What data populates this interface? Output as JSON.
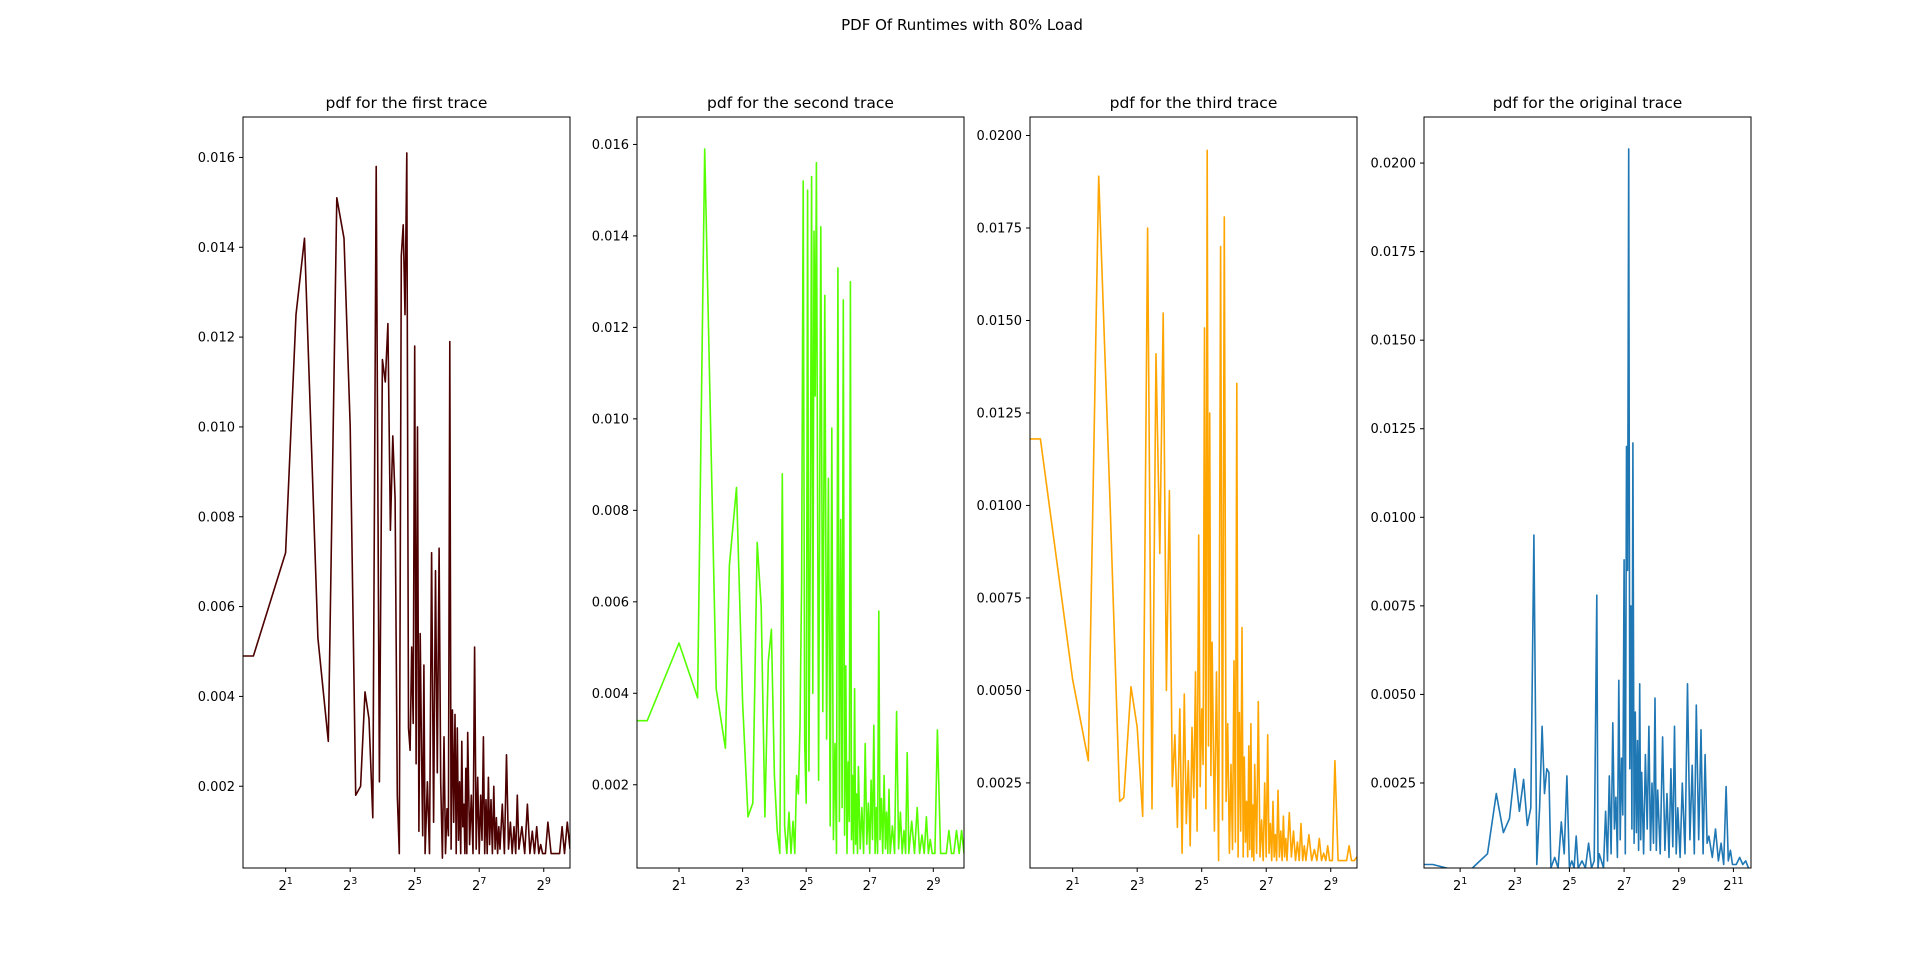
{
  "figure": {
    "suptitle": "PDF Of Runtimes with 80% Load"
  },
  "chart_data": [
    {
      "type": "line",
      "title": "pdf for the first trace",
      "color": "#4d0000",
      "x_scale": "log2",
      "xlim": [
        0.8,
        900
      ],
      "ylim": [
        0.00018,
        0.0169
      ],
      "xticks": [
        2,
        8,
        32,
        128,
        512
      ],
      "xtick_labels": [
        {
          "base": "2",
          "exp": "1"
        },
        {
          "base": "2",
          "exp": "3"
        },
        {
          "base": "2",
          "exp": "5"
        },
        {
          "base": "2",
          "exp": "7"
        },
        {
          "base": "2",
          "exp": "9"
        }
      ],
      "yticks": [
        0.002,
        0.004,
        0.006,
        0.008,
        0.01,
        0.012,
        0.014,
        0.016
      ],
      "ytick_labels": [
        "0.002",
        "0.004",
        "0.006",
        "0.008",
        "0.010",
        "0.012",
        "0.014",
        "0.016"
      ],
      "x": [
        0.8,
        1.0,
        2.0,
        2.5,
        3.0,
        4.0,
        5.0,
        6.0,
        7.0,
        8.0,
        9.0,
        10,
        11,
        12,
        13,
        14,
        15,
        16,
        17,
        18,
        19,
        20,
        21,
        22,
        23,
        24,
        25,
        26,
        27,
        28,
        29,
        30,
        31,
        32,
        33,
        34,
        35,
        36,
        37,
        38,
        39,
        40,
        42,
        44,
        46,
        48,
        50,
        52,
        54,
        56,
        58,
        60,
        62,
        64,
        66,
        68,
        70,
        72,
        74,
        76,
        78,
        80,
        82,
        84,
        86,
        88,
        90,
        92,
        94,
        96,
        98,
        100,
        104,
        108,
        112,
        116,
        120,
        124,
        128,
        132,
        136,
        140,
        144,
        148,
        152,
        156,
        160,
        165,
        170,
        175,
        180,
        185,
        190,
        195,
        200,
        210,
        220,
        230,
        240,
        250,
        260,
        270,
        280,
        290,
        300,
        320,
        340,
        360,
        380,
        400,
        420,
        440,
        460,
        480,
        500,
        530,
        560,
        600,
        640,
        680,
        720,
        760,
        800,
        850,
        900
      ],
      "y": [
        0.0049,
        0.0049,
        0.0072,
        0.0125,
        0.0142,
        0.0053,
        0.003,
        0.0151,
        0.0142,
        0.01,
        0.0018,
        0.002,
        0.0041,
        0.0035,
        0.0013,
        0.0158,
        0.0021,
        0.0115,
        0.011,
        0.0123,
        0.0077,
        0.0098,
        0.0084,
        0.0018,
        0.0005,
        0.0138,
        0.0145,
        0.0125,
        0.0161,
        0.0033,
        0.0028,
        0.0051,
        0.0034,
        0.0118,
        0.0025,
        0.01,
        0.001,
        0.0054,
        0.0028,
        0.0009,
        0.0047,
        0.0005,
        0.0021,
        0.0005,
        0.0072,
        0.0012,
        0.0068,
        0.0023,
        0.0073,
        0.0021,
        0.0004,
        0.0031,
        0.0005,
        0.0015,
        0.0009,
        0.0119,
        0.0006,
        0.0037,
        0.0012,
        0.0036,
        0.0005,
        0.0033,
        0.0008,
        0.0021,
        0.0005,
        0.003,
        0.0011,
        0.0016,
        0.0005,
        0.0024,
        0.0005,
        0.0032,
        0.0007,
        0.0018,
        0.0005,
        0.0051,
        0.0006,
        0.0022,
        0.0005,
        0.0018,
        0.0008,
        0.0031,
        0.0005,
        0.0017,
        0.0005,
        0.0022,
        0.0007,
        0.0017,
        0.0005,
        0.002,
        0.0006,
        0.0013,
        0.0005,
        0.0011,
        0.0006,
        0.0016,
        0.0005,
        0.0027,
        0.0006,
        0.0012,
        0.0005,
        0.0011,
        0.0005,
        0.0018,
        0.0006,
        0.0011,
        0.0005,
        0.0016,
        0.0005,
        0.001,
        0.0005,
        0.0011,
        0.0005,
        0.0007,
        0.0005,
        0.0005,
        0.0012,
        0.0005,
        0.0005,
        0.0005,
        0.0005,
        0.0011,
        0.0005,
        0.0012,
        0.0006
      ]
    },
    {
      "type": "line",
      "title": "pdf for the second trace",
      "color": "#55ff00",
      "x_scale": "log2",
      "xlim": [
        0.8,
        1000
      ],
      "ylim": [
        0.00018,
        0.0166
      ],
      "xticks": [
        2,
        8,
        32,
        128,
        512
      ],
      "xtick_labels": [
        {
          "base": "2",
          "exp": "1"
        },
        {
          "base": "2",
          "exp": "3"
        },
        {
          "base": "2",
          "exp": "5"
        },
        {
          "base": "2",
          "exp": "7"
        },
        {
          "base": "2",
          "exp": "9"
        }
      ],
      "yticks": [
        0.002,
        0.004,
        0.006,
        0.008,
        0.01,
        0.012,
        0.014,
        0.016
      ],
      "ytick_labels": [
        "0.002",
        "0.004",
        "0.006",
        "0.008",
        "0.010",
        "0.012",
        "0.014",
        "0.016"
      ],
      "x": [
        0.8,
        1.0,
        2.0,
        3.0,
        3.5,
        4.5,
        5.5,
        6.0,
        7.0,
        8.0,
        9.0,
        10,
        11,
        12,
        13,
        14,
        15,
        16,
        17,
        18,
        19,
        20,
        21,
        22,
        23,
        24,
        25,
        26,
        27,
        28,
        29,
        30,
        31,
        32,
        33,
        34,
        35,
        36,
        37,
        38,
        39,
        40,
        42,
        44,
        46,
        48,
        50,
        52,
        54,
        56,
        58,
        60,
        62,
        64,
        66,
        68,
        70,
        72,
        74,
        76,
        78,
        80,
        82,
        84,
        86,
        88,
        90,
        92,
        94,
        96,
        98,
        100,
        104,
        108,
        112,
        116,
        120,
        124,
        128,
        132,
        136,
        140,
        144,
        148,
        152,
        156,
        160,
        165,
        170,
        175,
        180,
        185,
        190,
        195,
        200,
        210,
        220,
        230,
        240,
        250,
        260,
        270,
        280,
        290,
        300,
        320,
        340,
        360,
        380,
        400,
        420,
        440,
        460,
        480,
        500,
        530,
        560,
        600,
        640,
        680,
        720,
        760,
        800,
        850,
        900,
        950,
        1000
      ],
      "y": [
        0.0034,
        0.0034,
        0.0051,
        0.0039,
        0.0159,
        0.0041,
        0.0028,
        0.0068,
        0.0085,
        0.0038,
        0.0013,
        0.0016,
        0.0073,
        0.0059,
        0.0013,
        0.0047,
        0.0054,
        0.0022,
        0.001,
        0.0005,
        0.0088,
        0.0011,
        0.0005,
        0.0014,
        0.0005,
        0.0012,
        0.0005,
        0.0022,
        0.0018,
        0.0033,
        0.0064,
        0.0152,
        0.0029,
        0.0016,
        0.015,
        0.0023,
        0.0075,
        0.0153,
        0.004,
        0.0141,
        0.0105,
        0.0156,
        0.0021,
        0.0142,
        0.0036,
        0.0127,
        0.003,
        0.0087,
        0.0011,
        0.0098,
        0.0008,
        0.0029,
        0.0005,
        0.0133,
        0.0012,
        0.0078,
        0.0015,
        0.0126,
        0.0009,
        0.0046,
        0.0005,
        0.0025,
        0.0012,
        0.013,
        0.0008,
        0.0022,
        0.0005,
        0.0041,
        0.0007,
        0.0018,
        0.0005,
        0.0024,
        0.0006,
        0.0015,
        0.0005,
        0.0029,
        0.0007,
        0.0016,
        0.0005,
        0.0021,
        0.0008,
        0.0033,
        0.0005,
        0.0015,
        0.0005,
        0.0058,
        0.0008,
        0.0017,
        0.0005,
        0.0022,
        0.0006,
        0.0014,
        0.0005,
        0.0019,
        0.0005,
        0.0011,
        0.0005,
        0.0036,
        0.0006,
        0.0014,
        0.0005,
        0.001,
        0.0005,
        0.0027,
        0.0005,
        0.0012,
        0.0005,
        0.0015,
        0.0005,
        0.0009,
        0.0005,
        0.0013,
        0.0005,
        0.0008,
        0.0005,
        0.0005,
        0.0032,
        0.0005,
        0.0005,
        0.0005,
        0.001,
        0.0005,
        0.0005,
        0.001,
        0.0005,
        0.001,
        0.0005
      ]
    },
    {
      "type": "line",
      "title": "pdf for the third trace",
      "color": "#ffa500",
      "x_scale": "log2",
      "xlim": [
        0.8,
        900
      ],
      "ylim": [
        0.0002,
        0.0205
      ],
      "xticks": [
        2,
        8,
        32,
        128,
        512
      ],
      "xtick_labels": [
        {
          "base": "2",
          "exp": "1"
        },
        {
          "base": "2",
          "exp": "3"
        },
        {
          "base": "2",
          "exp": "5"
        },
        {
          "base": "2",
          "exp": "7"
        },
        {
          "base": "2",
          "exp": "9"
        }
      ],
      "yticks": [
        0.0025,
        0.005,
        0.0075,
        0.01,
        0.0125,
        0.015,
        0.0175,
        0.02
      ],
      "ytick_labels": [
        "0.0025",
        "0.0050",
        "0.0075",
        "0.0100",
        "0.0125",
        "0.0150",
        "0.0175",
        "0.0200"
      ],
      "x": [
        0.8,
        1.0,
        2.0,
        2.8,
        3.5,
        4.5,
        5.5,
        6.0,
        7.0,
        8.0,
        9.0,
        10,
        11,
        12,
        13,
        14,
        15,
        16,
        17,
        18,
        19,
        20,
        21,
        22,
        23,
        24,
        25,
        26,
        27,
        28,
        29,
        30,
        31,
        32,
        33,
        34,
        35,
        36,
        37,
        38,
        39,
        40,
        42,
        44,
        46,
        48,
        50,
        52,
        54,
        56,
        58,
        60,
        62,
        64,
        66,
        68,
        70,
        72,
        74,
        76,
        78,
        80,
        82,
        84,
        86,
        88,
        90,
        92,
        94,
        96,
        98,
        100,
        104,
        108,
        112,
        116,
        120,
        124,
        128,
        132,
        136,
        140,
        144,
        148,
        152,
        156,
        160,
        165,
        170,
        175,
        180,
        185,
        190,
        195,
        200,
        210,
        220,
        230,
        240,
        250,
        260,
        270,
        280,
        290,
        300,
        320,
        340,
        360,
        380,
        400,
        420,
        440,
        460,
        480,
        500,
        530,
        560,
        600,
        640,
        680,
        720,
        760,
        800,
        850,
        900
      ],
      "y": [
        0.0118,
        0.0118,
        0.0053,
        0.0031,
        0.0189,
        0.0098,
        0.002,
        0.0021,
        0.0051,
        0.004,
        0.0016,
        0.0175,
        0.0018,
        0.0141,
        0.0087,
        0.0152,
        0.005,
        0.0104,
        0.0024,
        0.0038,
        0.0013,
        0.0045,
        0.0006,
        0.0049,
        0.0014,
        0.0031,
        0.0008,
        0.004,
        0.0021,
        0.0055,
        0.0012,
        0.0092,
        0.0024,
        0.0045,
        0.003,
        0.0148,
        0.0018,
        0.0196,
        0.0035,
        0.0125,
        0.0027,
        0.0063,
        0.0012,
        0.0055,
        0.0004,
        0.017,
        0.0015,
        0.0178,
        0.002,
        0.0041,
        0.0006,
        0.003,
        0.0007,
        0.0058,
        0.0009,
        0.0133,
        0.0005,
        0.0044,
        0.0012,
        0.0067,
        0.0005,
        0.0032,
        0.0009,
        0.002,
        0.0005,
        0.0035,
        0.0007,
        0.0041,
        0.0005,
        0.0019,
        0.0004,
        0.003,
        0.0006,
        0.0047,
        0.0005,
        0.0015,
        0.0004,
        0.0025,
        0.0005,
        0.0038,
        0.0006,
        0.0014,
        0.0004,
        0.002,
        0.0005,
        0.0011,
        0.0004,
        0.0023,
        0.0005,
        0.0012,
        0.0004,
        0.0016,
        0.0005,
        0.001,
        0.0004,
        0.0017,
        0.0005,
        0.0012,
        0.0004,
        0.0009,
        0.0004,
        0.0014,
        0.0004,
        0.0008,
        0.0004,
        0.0011,
        0.0004,
        0.0007,
        0.0004,
        0.001,
        0.0004,
        0.0006,
        0.0004,
        0.0008,
        0.0004,
        0.0004,
        0.0031,
        0.0004,
        0.0004,
        0.0004,
        0.0004,
        0.0008,
        0.0004,
        0.0004,
        0.0005
      ]
    },
    {
      "type": "line",
      "title": "pdf for the original trace",
      "color": "#1f77b4",
      "x_scale": "log2",
      "xlim": [
        0.8,
        3200
      ],
      "ylim": [
        0.0001,
        0.0213
      ],
      "xticks": [
        2,
        8,
        32,
        128,
        512,
        2048
      ],
      "xtick_labels": [
        {
          "base": "2",
          "exp": "1"
        },
        {
          "base": "2",
          "exp": "3"
        },
        {
          "base": "2",
          "exp": "5"
        },
        {
          "base": "2",
          "exp": "7"
        },
        {
          "base": "2",
          "exp": "9"
        },
        {
          "base": "2",
          "exp": "11"
        }
      ],
      "yticks": [
        0.0025,
        0.005,
        0.0075,
        0.01,
        0.0125,
        0.015,
        0.0175,
        0.02
      ],
      "ytick_labels": [
        "0.0025",
        "0.0050",
        "0.0075",
        "0.0100",
        "0.0125",
        "0.0150",
        "0.0175",
        "0.0200"
      ],
      "x": [
        0.8,
        1.0,
        2.0,
        2.5,
        3.0,
        4.0,
        5.0,
        6.0,
        7.0,
        8.0,
        9.0,
        10,
        11,
        12,
        13,
        14,
        15,
        16,
        17,
        18,
        19,
        20,
        22,
        24,
        26,
        28,
        30,
        32,
        34,
        36,
        38,
        40,
        44,
        48,
        52,
        56,
        60,
        64,
        66,
        68,
        72,
        76,
        80,
        84,
        88,
        92,
        96,
        100,
        104,
        108,
        112,
        116,
        120,
        124,
        128,
        132,
        136,
        140,
        144,
        148,
        152,
        156,
        160,
        165,
        170,
        175,
        180,
        185,
        190,
        195,
        200,
        210,
        220,
        230,
        240,
        250,
        260,
        270,
        280,
        290,
        300,
        320,
        340,
        360,
        380,
        400,
        420,
        440,
        460,
        480,
        500,
        530,
        560,
        600,
        640,
        680,
        720,
        760,
        800,
        850,
        900,
        950,
        1000,
        1050,
        1100,
        1200,
        1300,
        1400,
        1500,
        1600,
        1700,
        1800,
        1900,
        2000,
        2200,
        2400,
        2600,
        2800,
        3000
      ],
      "y": [
        0.0002,
        0.0002,
        0.0,
        0.0,
        0.0002,
        0.0005,
        0.0022,
        0.0011,
        0.0015,
        0.0029,
        0.0017,
        0.0026,
        0.0013,
        0.0018,
        0.0095,
        0.0002,
        0.0018,
        0.0041,
        0.0022,
        0.0029,
        0.0028,
        0.0001,
        0.0004,
        0.0001,
        0.0014,
        0.0005,
        0.0027,
        0.0001,
        0.0003,
        0.0001,
        0.001,
        0.0001,
        0.0003,
        0.0001,
        0.0008,
        0.0001,
        0.0003,
        0.0078,
        0.0001,
        0.0005,
        0.0003,
        0.0001,
        0.0017,
        0.0003,
        0.0027,
        0.0005,
        0.0042,
        0.0012,
        0.0021,
        0.0004,
        0.0054,
        0.0009,
        0.0032,
        0.0016,
        0.0088,
        0.0005,
        0.012,
        0.0085,
        0.0204,
        0.0029,
        0.0075,
        0.0012,
        0.0121,
        0.0008,
        0.0045,
        0.0011,
        0.0037,
        0.0006,
        0.0053,
        0.0009,
        0.0028,
        0.0005,
        0.0033,
        0.0012,
        0.0041,
        0.0006,
        0.0025,
        0.0008,
        0.0049,
        0.0006,
        0.0023,
        0.0005,
        0.0038,
        0.0006,
        0.0022,
        0.0004,
        0.0029,
        0.0007,
        0.0041,
        0.0005,
        0.0018,
        0.0004,
        0.0025,
        0.0005,
        0.0053,
        0.0009,
        0.003,
        0.0005,
        0.0047,
        0.0009,
        0.004,
        0.0005,
        0.0033,
        0.0008,
        0.001,
        0.0004,
        0.0012,
        0.0003,
        0.0008,
        0.0002,
        0.0024,
        0.0003,
        0.0006,
        0.0002,
        0.0002,
        0.0004,
        0.0002,
        0.0003,
        0.0001
      ]
    }
  ]
}
